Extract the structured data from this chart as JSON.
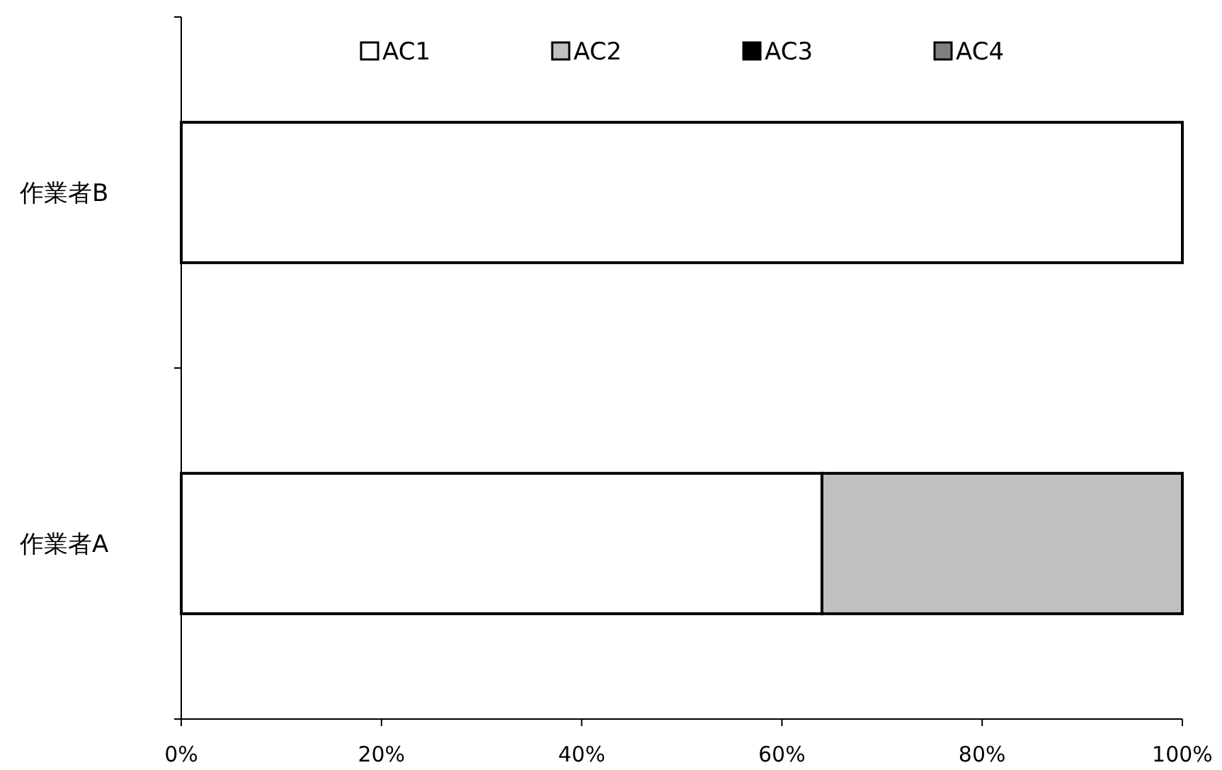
{
  "chart_data": {
    "type": "bar",
    "orientation": "horizontal",
    "stacked": true,
    "categories": [
      "作業者B",
      "作業者A"
    ],
    "series": [
      {
        "name": "AC1",
        "color": "#ffffff",
        "values": [
          100,
          64
        ]
      },
      {
        "name": "AC2",
        "color": "#c0c0c0",
        "values": [
          0,
          36
        ]
      },
      {
        "name": "AC3",
        "color": "#000000",
        "values": [
          0,
          0
        ]
      },
      {
        "name": "AC4",
        "color": "#808080",
        "values": [
          0,
          0
        ]
      }
    ],
    "xlim": [
      0,
      100
    ],
    "xticks": [
      {
        "value": 0,
        "label": "0%"
      },
      {
        "value": 20,
        "label": "20%"
      },
      {
        "value": 40,
        "label": "40%"
      },
      {
        "value": 60,
        "label": "60%"
      },
      {
        "value": 80,
        "label": "80%"
      },
      {
        "value": 100,
        "label": "100%"
      }
    ],
    "grid": false,
    "legend": "top"
  }
}
